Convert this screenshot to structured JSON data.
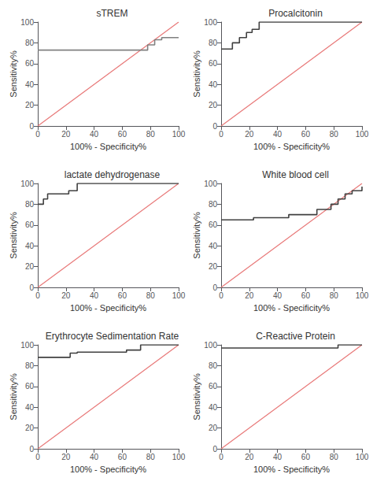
{
  "chart_data": [
    {
      "type": "line",
      "title": "sTREM",
      "xlabel": "100% - Specificity%",
      "ylabel": "Sensitivity%",
      "xlim": [
        0,
        100
      ],
      "ylim": [
        0,
        100
      ],
      "xticks": [
        0,
        20,
        40,
        60,
        80,
        100
      ],
      "yticks": [
        0,
        20,
        40,
        60,
        80,
        100
      ],
      "grid": false,
      "series": [
        {
          "type": "line",
          "color": "#e87878",
          "x": [
            0,
            100
          ],
          "values": [
            0,
            100
          ]
        },
        {
          "type": "step",
          "color": "#808080",
          "x": [
            0,
            73,
            78,
            83,
            88,
            100
          ],
          "values": [
            73,
            73,
            78,
            83,
            85,
            85
          ]
        }
      ]
    },
    {
      "type": "line",
      "title": "Procalcitonin",
      "xlabel": "100% - Specificity%",
      "ylabel": "Sensitivity%",
      "xlim": [
        0,
        100
      ],
      "ylim": [
        0,
        100
      ],
      "xticks": [
        0,
        20,
        40,
        60,
        80,
        100
      ],
      "yticks": [
        0,
        20,
        40,
        60,
        80,
        100
      ],
      "grid": false,
      "series": [
        {
          "type": "line",
          "color": "#e87878",
          "x": [
            0,
            100
          ],
          "values": [
            0,
            100
          ]
        },
        {
          "type": "step",
          "color": "#404040",
          "x": [
            0,
            3,
            8,
            13,
            18,
            22,
            27,
            65,
            100
          ],
          "values": [
            74,
            74,
            80,
            85,
            90,
            93,
            100,
            100,
            100
          ]
        }
      ]
    },
    {
      "type": "line",
      "title": "lactate dehydrogenase",
      "xlabel": "100% - Specificity%",
      "ylabel": "Sensitivity%",
      "xlim": [
        0,
        100
      ],
      "ylim": [
        0,
        100
      ],
      "xticks": [
        0,
        20,
        40,
        60,
        80,
        100
      ],
      "yticks": [
        0,
        20,
        40,
        60,
        80,
        100
      ],
      "grid": false,
      "series": [
        {
          "type": "line",
          "color": "#e87878",
          "x": [
            0,
            100
          ],
          "values": [
            0,
            100
          ]
        },
        {
          "type": "step",
          "color": "#404040",
          "x": [
            0,
            4,
            7,
            22,
            28,
            100
          ],
          "values": [
            80,
            85,
            90,
            93,
            100,
            100
          ]
        }
      ]
    },
    {
      "type": "line",
      "title": "White blood cell",
      "xlabel": "100% - Specificity%",
      "ylabel": "Sensitivity%",
      "xlim": [
        0,
        100
      ],
      "ylim": [
        0,
        100
      ],
      "xticks": [
        0,
        20,
        40,
        60,
        80,
        100
      ],
      "yticks": [
        0,
        20,
        40,
        60,
        80,
        100
      ],
      "grid": false,
      "series": [
        {
          "type": "line",
          "color": "#e87878",
          "x": [
            0,
            100
          ],
          "values": [
            0,
            100
          ]
        },
        {
          "type": "step",
          "color": "#404040",
          "x": [
            0,
            4,
            23,
            44,
            48,
            63,
            68,
            78,
            83,
            88,
            93,
            100
          ],
          "values": [
            65,
            65,
            67,
            67,
            70,
            70,
            75,
            80,
            85,
            90,
            93,
            97
          ]
        }
      ]
    },
    {
      "type": "line",
      "title": "Erythrocyte Sedimentation Rate",
      "xlabel": "100% - Specificity%",
      "ylabel": "Sensitivity%",
      "xlim": [
        0,
        100
      ],
      "ylim": [
        0,
        100
      ],
      "xticks": [
        0,
        20,
        40,
        60,
        80,
        100
      ],
      "yticks": [
        0,
        20,
        40,
        60,
        80,
        100
      ],
      "grid": false,
      "series": [
        {
          "type": "line",
          "color": "#e87878",
          "x": [
            0,
            100
          ],
          "values": [
            0,
            100
          ]
        },
        {
          "type": "step",
          "color": "#404040",
          "x": [
            0,
            8,
            23,
            28,
            63,
            73,
            100
          ],
          "values": [
            88,
            88,
            92,
            93,
            95,
            100,
            100
          ]
        }
      ]
    },
    {
      "type": "line",
      "title": "C-Reactive Protein",
      "xlabel": "100% - Specificity%",
      "ylabel": "Sensitivity%",
      "xlim": [
        0,
        100
      ],
      "ylim": [
        0,
        100
      ],
      "xticks": [
        0,
        20,
        40,
        60,
        80,
        100
      ],
      "yticks": [
        0,
        20,
        40,
        60,
        80,
        100
      ],
      "grid": false,
      "series": [
        {
          "type": "line",
          "color": "#e87878",
          "x": [
            0,
            100
          ],
          "values": [
            0,
            100
          ]
        },
        {
          "type": "step",
          "color": "#404040",
          "x": [
            0,
            3,
            83,
            100
          ],
          "values": [
            97,
            97,
            100,
            100
          ]
        }
      ]
    }
  ]
}
